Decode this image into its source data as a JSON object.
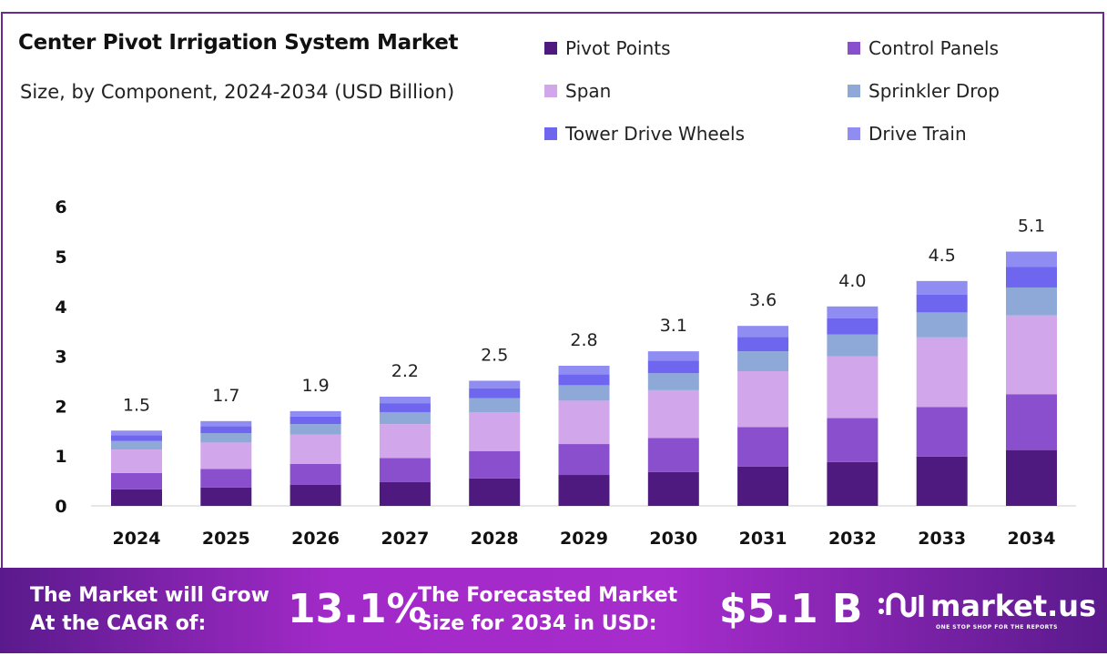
{
  "chart_data": {
    "type": "bar",
    "stacked": true,
    "title": "Center Pivot Irrigation System Market",
    "subtitle": "Size, by Component, 2024-2034 (USD Billion)",
    "xlabel": "",
    "ylabel": "",
    "ylim": [
      0,
      6
    ],
    "yticks": [
      0,
      1,
      2,
      3,
      4,
      5,
      6
    ],
    "grid": false,
    "legend_position": "top-right",
    "categories": [
      "2024",
      "2025",
      "2026",
      "2027",
      "2028",
      "2029",
      "2030",
      "2031",
      "2032",
      "2033",
      "2034"
    ],
    "totals": [
      "1.5",
      "1.7",
      "1.9",
      "2.2",
      "2.5",
      "2.8",
      "3.1",
      "3.6",
      "4.0",
      "4.5",
      "5.1"
    ],
    "series": [
      {
        "name": "Pivot Points",
        "color": "#4e1a7f",
        "values": [
          0.33,
          0.37,
          0.42,
          0.48,
          0.55,
          0.62,
          0.68,
          0.79,
          0.88,
          0.99,
          1.12
        ]
      },
      {
        "name": "Control Panels",
        "color": "#8a4fcc",
        "values": [
          0.33,
          0.37,
          0.42,
          0.48,
          0.55,
          0.62,
          0.68,
          0.79,
          0.88,
          0.99,
          1.12
        ]
      },
      {
        "name": "Span",
        "color": "#d2a6ea",
        "values": [
          0.47,
          0.53,
          0.59,
          0.68,
          0.78,
          0.87,
          0.96,
          1.12,
          1.24,
          1.4,
          1.58
        ]
      },
      {
        "name": "Sprinkler Drop",
        "color": "#8ea8d8",
        "values": [
          0.17,
          0.19,
          0.21,
          0.24,
          0.28,
          0.31,
          0.34,
          0.4,
          0.44,
          0.5,
          0.56
        ]
      },
      {
        "name": "Tower Drive Wheels",
        "color": "#6f66f0",
        "values": [
          0.12,
          0.14,
          0.15,
          0.18,
          0.2,
          0.22,
          0.25,
          0.29,
          0.32,
          0.36,
          0.41
        ]
      },
      {
        "name": "Drive Train",
        "color": "#8f8cf2",
        "values": [
          0.09,
          0.1,
          0.11,
          0.13,
          0.15,
          0.17,
          0.19,
          0.22,
          0.24,
          0.27,
          0.31
        ]
      }
    ]
  },
  "footer": {
    "cagr_text_1": "The Market will Grow",
    "cagr_text_2": "At the CAGR of:",
    "cagr_value": "13.1%",
    "forecast_text_1": "The Forecasted Market",
    "forecast_text_2": "Size for 2034 in USD:",
    "forecast_value": "$5.1 B",
    "brand": "market.us",
    "brand_tagline": "ONE STOP SHOP FOR THE REPORTS"
  }
}
